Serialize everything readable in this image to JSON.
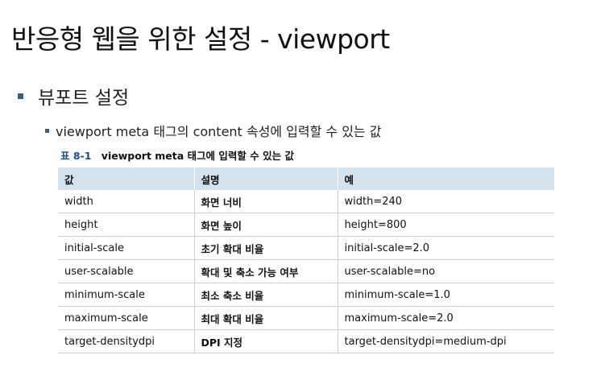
{
  "slide": {
    "title": "반응형 웹을 위한 설정 - viewport",
    "bullet1": "뷰포트 설정",
    "bullet2": "viewport meta 태그의 content 속성에 입력할 수 있는 값",
    "caption_num": "표 8-1",
    "caption_text": "viewport meta 태그에 입력할 수 있는 값"
  },
  "table": {
    "headers": [
      "값",
      "설명",
      "예"
    ],
    "rows": [
      [
        "width",
        "화면 너비",
        "width=240"
      ],
      [
        "height",
        "화면 높이",
        "height=800"
      ],
      [
        "initial-scale",
        "초기 확대 비율",
        "initial-scale=2.0"
      ],
      [
        "user-scalable",
        "확대 및 축소 가능 여부",
        "user-scalable=no"
      ],
      [
        "minimum-scale",
        "최소 축소 비율",
        "minimum-scale=1.0"
      ],
      [
        "maximum-scale",
        "최대 확대 비율",
        "maximum-scale=2.0"
      ],
      [
        "target-densitydpi",
        "DPI 지정",
        "target-densitydpi=medium-dpi"
      ]
    ]
  },
  "colors": {
    "bullet": "#3a5f7a",
    "header_bg": "#d3e2ec",
    "caption_accent": "#1a4f86"
  }
}
